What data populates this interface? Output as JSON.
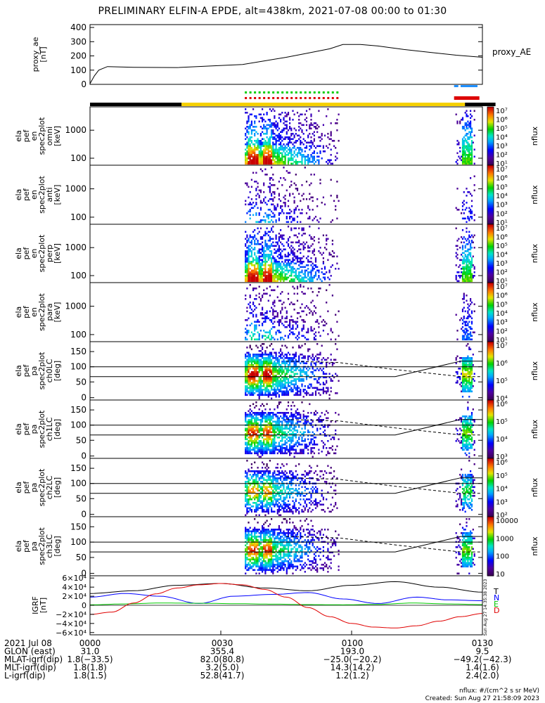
{
  "title": "PRELIMINARY ELFIN-A EPDE, alt=438km, 2021-07-08 00:00 to 01:30",
  "colors": {
    "series_black": "#000000",
    "series_blue": "#0000ff",
    "series_green": "#00c800",
    "series_red": "#e00000",
    "bar_yellow": "#f5d000",
    "bar_black": "#000000",
    "marker_green": "#00cc00",
    "marker_red": "#dd0000",
    "marker_blue": "#1e90ff"
  },
  "chart_data": {
    "type": "multi-panel",
    "x_ticks": [
      "0000",
      "0030",
      "0100",
      "0130"
    ],
    "x_range_minutes": [
      0,
      90
    ],
    "panels": [
      {
        "id": "proxy_ae",
        "type": "line",
        "ylabel": [
          "proxy_ae",
          "[nT]"
        ],
        "series_name": "proxy_AE",
        "ylim": [
          0,
          420
        ],
        "yticks": [
          "400",
          "300",
          "200",
          "100",
          "0"
        ],
        "x": [
          0,
          1,
          2,
          4,
          10,
          20,
          28,
          35,
          40,
          45,
          50,
          55,
          58,
          62,
          66,
          72,
          78,
          84,
          90
        ],
        "y": [
          5,
          60,
          100,
          125,
          120,
          118,
          130,
          140,
          165,
          190,
          220,
          250,
          280,
          280,
          270,
          245,
          225,
          205,
          190
        ]
      },
      {
        "id": "en_spec_omni",
        "type": "heatmap",
        "ylabel": [
          "ela",
          "pef",
          "en",
          "spec2plot",
          "omni",
          "[keV]"
        ],
        "yticks": [
          "1000",
          "100"
        ],
        "cbar_ticks": [
          "10⁷",
          "10⁶",
          "10⁵",
          "10⁴",
          "10³",
          "10²",
          "10¹"
        ],
        "cbar_label": "nflux"
      },
      {
        "id": "en_spec_anti",
        "type": "heatmap",
        "ylabel": [
          "ela",
          "pef",
          "en",
          "spec2plot",
          "anti",
          "[keV]"
        ],
        "yticks": [
          "1000",
          "100"
        ],
        "cbar_ticks": [
          "10⁷",
          "10⁶",
          "10⁵",
          "10⁴",
          "10³",
          "10²",
          "10¹"
        ],
        "cbar_label": "nflux"
      },
      {
        "id": "en_spec_perp",
        "type": "heatmap",
        "ylabel": [
          "ela",
          "pef",
          "en",
          "spec2plot",
          "perp",
          "[keV]"
        ],
        "yticks": [
          "1000",
          "100"
        ],
        "cbar_ticks": [
          "10⁷",
          "10⁶",
          "10⁵",
          "10⁴",
          "10³",
          "10²",
          "10¹"
        ],
        "cbar_label": "nflux"
      },
      {
        "id": "en_spec_para",
        "type": "heatmap",
        "ylabel": [
          "ela",
          "pef",
          "en",
          "spec2plot",
          "para",
          "[keV]"
        ],
        "yticks": [
          "1000",
          "100"
        ],
        "cbar_ticks": [
          "10⁷",
          "10⁶",
          "10⁵",
          "10⁴",
          "10³",
          "10²",
          "10¹"
        ],
        "cbar_label": "nflux"
      },
      {
        "id": "pa_ch0",
        "type": "heatmap",
        "ylabel": [
          "ela",
          "pef",
          "pa",
          "spec2plot",
          "ch0LC",
          "[deg]"
        ],
        "yticks": [
          "150",
          "100",
          "50",
          "0"
        ],
        "cbar_ticks": [
          "10⁷",
          "10⁶",
          "10⁵",
          "10⁴"
        ],
        "cbar_label": "nflux"
      },
      {
        "id": "pa_ch1",
        "type": "heatmap",
        "ylabel": [
          "ela",
          "pef",
          "pa",
          "spec2plot",
          "ch1LC",
          "[deg]"
        ],
        "yticks": [
          "150",
          "100",
          "50",
          "0"
        ],
        "cbar_ticks": [
          "10⁶",
          "10⁵",
          "10⁴",
          "10³"
        ],
        "cbar_label": "nflux"
      },
      {
        "id": "pa_ch2",
        "type": "heatmap",
        "ylabel": [
          "ela",
          "pef",
          "pa",
          "spec2plot",
          "ch2LC",
          "[deg]"
        ],
        "yticks": [
          "150",
          "100",
          "50",
          "0"
        ],
        "cbar_ticks": [
          "10⁶",
          "10⁵",
          "10⁴",
          "10³",
          "10²"
        ],
        "cbar_label": "nflux"
      },
      {
        "id": "pa_ch3",
        "type": "heatmap",
        "ylabel": [
          "ela",
          "pef",
          "pa",
          "spec2plot",
          "ch3LC",
          "[deg]"
        ],
        "yticks": [
          "150",
          "100",
          "50",
          "0"
        ],
        "cbar_ticks": [
          "10000",
          "1000",
          "100",
          "10"
        ],
        "cbar_label": "nflux"
      },
      {
        "id": "igrf",
        "type": "line",
        "ylabel": [
          "IGRF",
          "[nT]"
        ],
        "yticks": [
          "6×10⁴",
          "4×10⁴",
          "2×10⁴",
          "0",
          "−2×10⁴",
          "−4×10⁴",
          "−6×10⁴"
        ],
        "ylim": [
          -65000,
          65000
        ],
        "legend": [
          "T",
          "N",
          "E",
          "D"
        ],
        "side_note": "Sun Aug 27 14:35:38 2023",
        "series": [
          {
            "name": "T",
            "color": "#000000",
            "x": [
              0,
              10,
              20,
              30,
              40,
              50,
              60,
              70,
              80,
              90
            ],
            "y": [
              26000,
              32000,
              44000,
              48000,
              38000,
              32000,
              44000,
              52000,
              40000,
              29000
            ]
          },
          {
            "name": "N",
            "color": "#0000ff",
            "x": [
              0,
              8,
              16,
              25,
              33,
              42,
              50,
              58,
              66,
              75,
              82,
              90
            ],
            "y": [
              18000,
              26000,
              20000,
              4000,
              20000,
              24000,
              28000,
              14000,
              4000,
              18000,
              12000,
              10000
            ]
          },
          {
            "name": "E",
            "color": "#00c800",
            "x": [
              0,
              8,
              16,
              25,
              34,
              42,
              50,
              58,
              66,
              74,
              82,
              90
            ],
            "y": [
              1000,
              3000,
              5000,
              4500,
              3500,
              2500,
              1500,
              1000,
              2000,
              5000,
              3000,
              1500
            ]
          },
          {
            "name": "D",
            "color": "#e00000",
            "x": [
              0,
              5,
              10,
              15,
              20,
              25,
              30,
              35,
              40,
              45,
              50,
              55,
              60,
              65,
              70,
              75,
              80,
              85,
              90
            ],
            "y": [
              -20000,
              -15000,
              5000,
              25000,
              38000,
              45000,
              48000,
              45000,
              35000,
              18000,
              -5000,
              -25000,
              -40000,
              -48000,
              -50000,
              -45000,
              -35000,
              -25000,
              -18000
            ]
          }
        ]
      }
    ],
    "science_zone_bars": [
      {
        "label": "flag",
        "segments": [
          {
            "from": 0,
            "to": 21,
            "color": "black"
          },
          {
            "from": 21,
            "to": 86,
            "color": "yellow"
          },
          {
            "from": 86,
            "to": 93,
            "color": "black"
          }
        ]
      }
    ]
  },
  "ephemeris": {
    "rows": [
      {
        "label": "2021 Jul 08",
        "values": [
          "0000",
          "0030",
          "0100",
          "0130"
        ]
      },
      {
        "label": "GLON (east)",
        "values": [
          "31.0",
          "355.4",
          "193.0",
          "9.5"
        ]
      },
      {
        "label": "MLAT-igrf(dip)",
        "values": [
          "1.8(−33.5)",
          "82.0(80.8)",
          "−25.0(−20.2)",
          "−49.2(−42.3)"
        ]
      },
      {
        "label": "MLT-igrf(dip)",
        "values": [
          "1.8(1.8)",
          "3.2(5.0)",
          "14.3(14.2)",
          "1.4(1.6)"
        ]
      },
      {
        "label": "L-igrf(dip)",
        "values": [
          "1.8(1.5)",
          "52.8(41.7)",
          "1.2(1.2)",
          "2.4(2.0)"
        ]
      }
    ]
  },
  "footer": {
    "units": "nflux: #/(cm^2 s sr MeV)",
    "created": "Created: Sun Aug 27 21:58:09 2023"
  }
}
